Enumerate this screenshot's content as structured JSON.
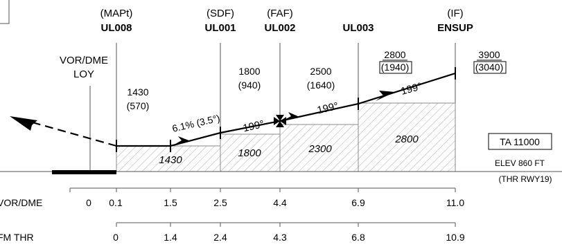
{
  "fixes": [
    {
      "id": "mapt",
      "role": "(MAPt)",
      "name": "UL008"
    },
    {
      "id": "sdf",
      "role": "(SDF)",
      "name": "UL001"
    },
    {
      "id": "faf",
      "role": "(FAF)",
      "name": "UL002"
    },
    {
      "id": "ul003",
      "role": "",
      "name": "UL003"
    },
    {
      "id": "if",
      "role": "(IF)",
      "name": "ENSUP"
    }
  ],
  "navaid": {
    "line1": "VOR/DME",
    "line2": "LOY"
  },
  "altitudes": [
    {
      "id": "mapt",
      "alt": "1430",
      "height": "(570)"
    },
    {
      "id": "sdf",
      "alt": "1800",
      "height": "(940)"
    },
    {
      "id": "faf",
      "alt": "2500",
      "height": "(1640)"
    },
    {
      "id": "ul003",
      "alt": "2800",
      "height": "(1940)"
    },
    {
      "id": "if",
      "alt": "3900",
      "height": "(3040)"
    }
  ],
  "gradient": "6.1% (3.5°)",
  "tracks": [
    "199°",
    "199°",
    "199°",
    "199°"
  ],
  "msa_blocks": [
    "1430",
    "1800",
    "2300",
    "2800"
  ],
  "ta": "TA 11000",
  "elev": "ELEV 860 FT",
  "thr": "(THR RWY19)",
  "scales": {
    "vor_label": "VOR/DME",
    "vor_values": [
      "0",
      "0.1",
      "1.5",
      "2.5",
      "4.4",
      "6.9",
      "11.0"
    ],
    "thr_label": "FM THR",
    "thr_values": [
      "0",
      "1.4",
      "2.4",
      "4.3",
      "6.8",
      "10.9"
    ]
  }
}
